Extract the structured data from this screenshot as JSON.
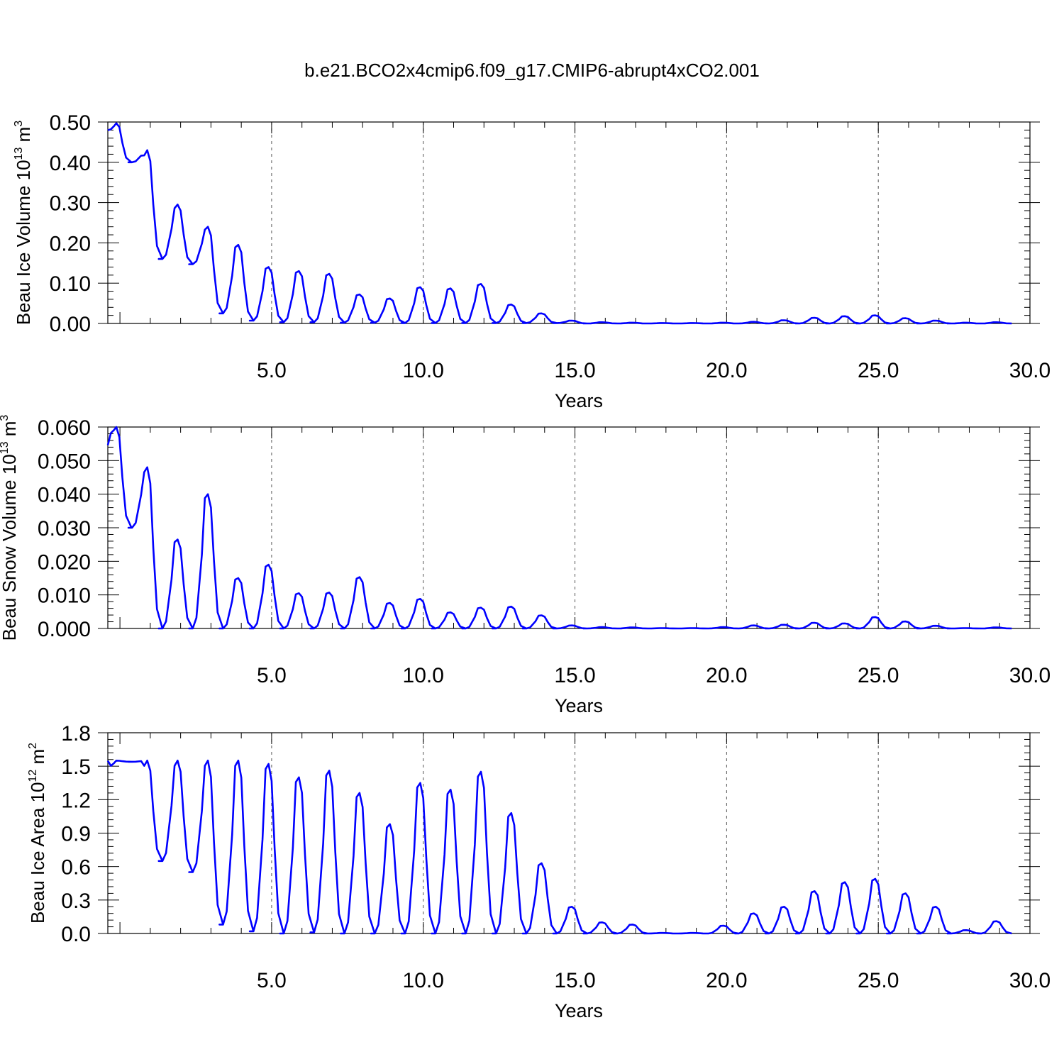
{
  "title": "b.e21.BCO2x4cmip6.f09_g17.CMIP6-abrupt4xCO2.001",
  "line_color": "#0000ff",
  "chart_data": [
    {
      "type": "line",
      "xlabel": "Years",
      "ylabel": "Beau Ice Volume 10",
      "ylabel_exp": "13",
      "ylabel_unit": " m",
      "ylabel_unit_exp": "3",
      "xlim": [
        -0.4,
        30
      ],
      "ylim": [
        0,
        0.5
      ],
      "xticks": [
        5,
        10,
        15,
        20,
        25,
        30
      ],
      "xtick_labels": [
        "5.0",
        "10.0",
        "15.0",
        "20.0",
        "25.0",
        "30.0"
      ],
      "yticks": [
        0,
        0.1,
        0.2,
        0.3,
        0.4,
        0.5
      ],
      "ytick_labels": [
        "0.00",
        "0.10",
        "0.20",
        "0.30",
        "0.40",
        "0.50"
      ],
      "grid": "vertical dashed",
      "series": [
        {
          "peak_x": [
            -0.12,
            0.9,
            1.9,
            2.9,
            3.9,
            4.9,
            5.9,
            6.9,
            7.9,
            8.9,
            9.9,
            10.9,
            11.9,
            12.9,
            13.9,
            14.9,
            15.9,
            16.9,
            17.9,
            18.9,
            19.9,
            20.9,
            21.9,
            22.9,
            23.9,
            24.9,
            25.9,
            26.9,
            27.9,
            28.9
          ],
          "peak_y": [
            0.497,
            0.43,
            0.295,
            0.24,
            0.195,
            0.14,
            0.13,
            0.123,
            0.072,
            0.062,
            0.09,
            0.087,
            0.098,
            0.047,
            0.025,
            0.007,
            0.003,
            0.002,
            0.001,
            0.001,
            0.002,
            0.004,
            0.008,
            0.014,
            0.018,
            0.02,
            0.013,
            0.007,
            0.002,
            0.003
          ],
          "trough_y": [
            0.4,
            0.16,
            0.147,
            0.025,
            0.007,
            0.003,
            0.003,
            0.002,
            0.002,
            0.001,
            0.001,
            0.001,
            0.001,
            0.001,
            0.001,
            0.0,
            0.0,
            0.0,
            0.0,
            0.0,
            0.0,
            0.0,
            0.0,
            0.0,
            0.0,
            0.0,
            0.0,
            0.0,
            0.0,
            0.0
          ]
        }
      ]
    },
    {
      "type": "line",
      "xlabel": "Years",
      "ylabel": "Beau Snow Volume 10",
      "ylabel_exp": "13",
      "ylabel_unit": " m",
      "ylabel_unit_exp": "3",
      "xlim": [
        -0.4,
        30
      ],
      "ylim": [
        0,
        0.06
      ],
      "xticks": [
        5,
        10,
        15,
        20,
        25,
        30
      ],
      "xtick_labels": [
        "5.0",
        "10.0",
        "15.0",
        "20.0",
        "25.0",
        "30.0"
      ],
      "yticks": [
        0,
        0.01,
        0.02,
        0.03,
        0.04,
        0.05,
        0.06
      ],
      "ytick_labels": [
        "0.000",
        "0.010",
        "0.020",
        "0.030",
        "0.040",
        "0.050",
        "0.060"
      ],
      "grid": "vertical dashed",
      "series": [
        {
          "peak_x": [
            -0.12,
            0.9,
            1.9,
            2.9,
            3.9,
            4.9,
            5.9,
            6.9,
            7.9,
            8.9,
            9.9,
            10.9,
            11.9,
            12.9,
            13.9,
            14.9,
            15.9,
            16.9,
            17.9,
            18.9,
            19.9,
            20.9,
            21.9,
            22.9,
            23.9,
            24.9,
            25.9,
            26.9,
            27.9,
            28.9
          ],
          "peak_y": [
            0.06,
            0.048,
            0.0265,
            0.04,
            0.015,
            0.019,
            0.0105,
            0.0107,
            0.0153,
            0.0076,
            0.0088,
            0.0048,
            0.0062,
            0.0065,
            0.0039,
            0.0009,
            0.0004,
            0.0003,
            0.0001,
            0.0001,
            0.0004,
            0.0009,
            0.0011,
            0.0017,
            0.0015,
            0.0034,
            0.0021,
            0.0008,
            0.0001,
            0.0003
          ],
          "trough_y": [
            0.03,
            0.0,
            0.0,
            0.0,
            0.0,
            0.0,
            0.0,
            0.0,
            0.0,
            0.0,
            0.0,
            0.0,
            0.0,
            0.0,
            0.0,
            0.0,
            0.0,
            0.0,
            0.0,
            0.0,
            0.0,
            0.0,
            0.0,
            0.0,
            0.0,
            0.0,
            0.0,
            0.0,
            0.0,
            0.0
          ]
        }
      ]
    },
    {
      "type": "line",
      "xlabel": "Years",
      "ylabel": "Beau Ice Area 10",
      "ylabel_exp": "12",
      "ylabel_unit": " m",
      "ylabel_unit_exp": "2",
      "xlim": [
        -0.4,
        30
      ],
      "ylim": [
        0,
        1.8
      ],
      "xticks": [
        5,
        10,
        15,
        20,
        25,
        30
      ],
      "xtick_labels": [
        "5.0",
        "10.0",
        "15.0",
        "20.0",
        "25.0",
        "30.0"
      ],
      "yticks": [
        0,
        0.3,
        0.6,
        0.9,
        1.2,
        1.5,
        1.8
      ],
      "ytick_labels": [
        "0.0",
        "0.3",
        "0.6",
        "0.9",
        "1.2",
        "1.5",
        "1.8"
      ],
      "grid": "vertical dashed",
      "series": [
        {
          "peak_x": [
            -0.12,
            0.9,
            1.9,
            2.9,
            3.9,
            4.9,
            5.9,
            6.9,
            7.9,
            8.9,
            9.9,
            10.9,
            11.9,
            12.9,
            13.9,
            14.9,
            15.9,
            16.9,
            17.9,
            18.9,
            19.9,
            20.9,
            21.9,
            22.9,
            23.9,
            24.9,
            25.9,
            26.9,
            27.9,
            28.9
          ],
          "peak_y": [
            1.55,
            1.55,
            1.55,
            1.55,
            1.55,
            1.52,
            1.4,
            1.46,
            1.26,
            0.98,
            1.35,
            1.29,
            1.45,
            1.08,
            0.63,
            0.24,
            0.1,
            0.08,
            0.005,
            0.005,
            0.07,
            0.18,
            0.24,
            0.38,
            0.46,
            0.49,
            0.36,
            0.24,
            0.03,
            0.11
          ],
          "trough_y": [
            1.54,
            0.65,
            0.55,
            0.08,
            0.02,
            0.0,
            0.01,
            0.0,
            0.0,
            0.0,
            0.0,
            0.0,
            0.0,
            0.0,
            0.0,
            0.0,
            0.0,
            0.0,
            0.0,
            0.0,
            0.0,
            0.0,
            0.0,
            0.0,
            0.0,
            0.0,
            0.0,
            0.0,
            0.0,
            0.0
          ]
        }
      ]
    }
  ]
}
